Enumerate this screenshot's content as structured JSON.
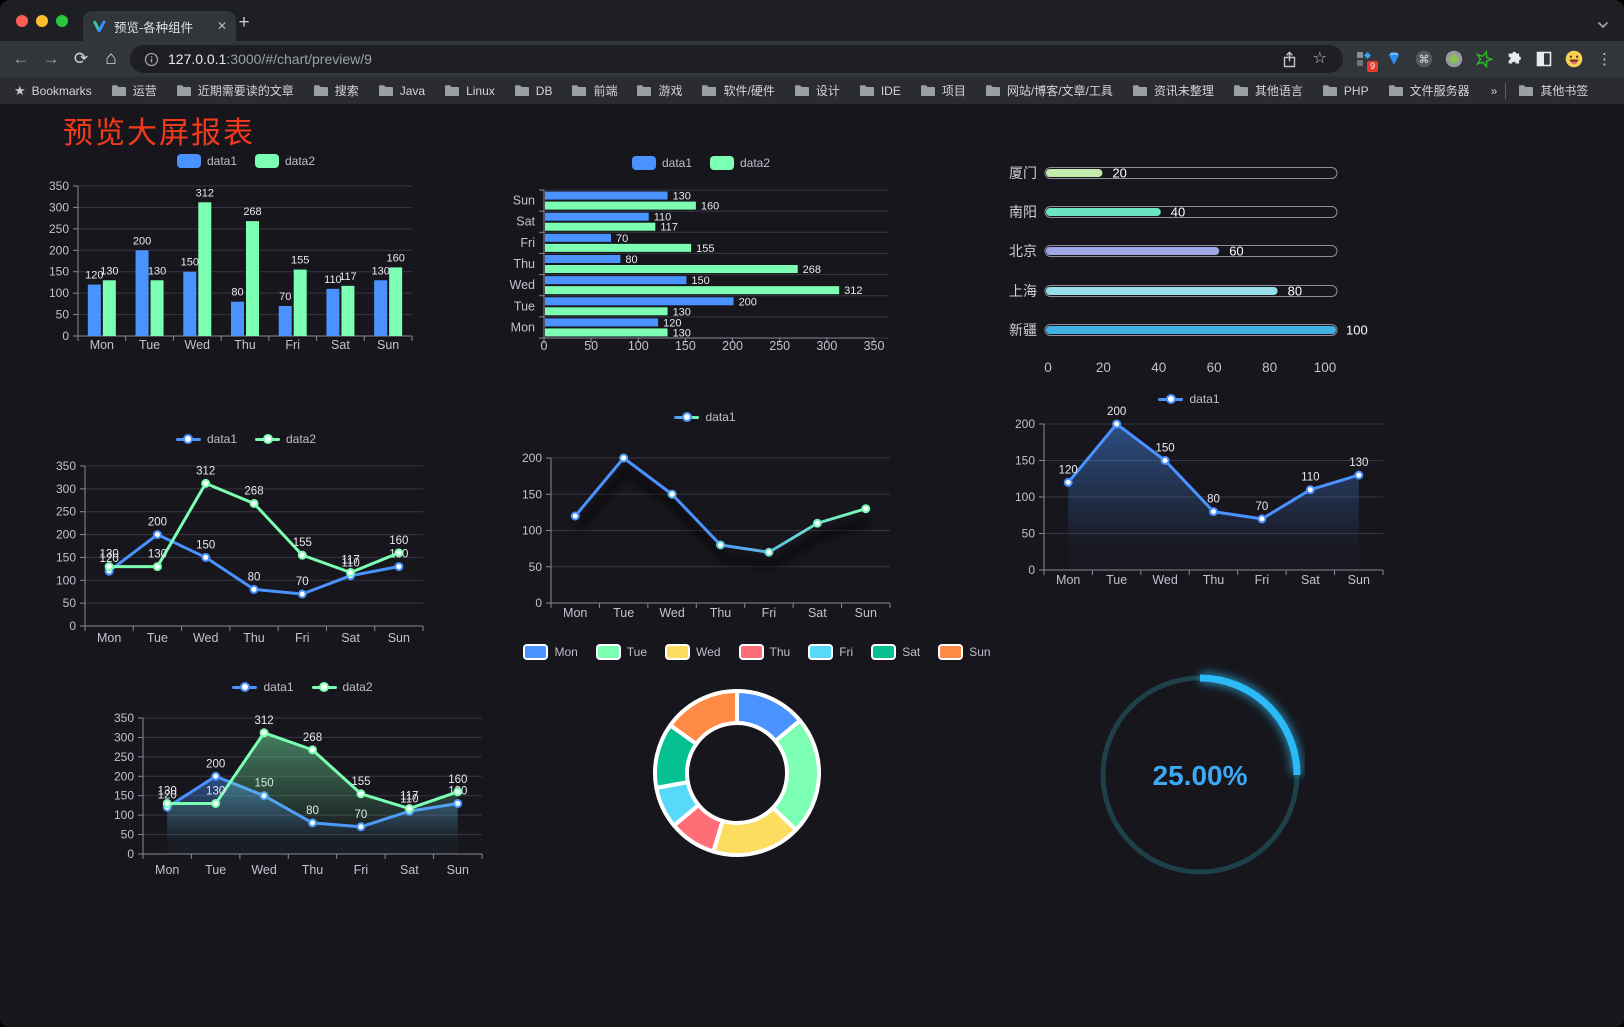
{
  "browser": {
    "traffic_lights": [
      "#ff5f57",
      "#febc2e",
      "#2ac840"
    ],
    "tab": {
      "title": "预览-各种组件"
    },
    "url": {
      "host": "127.0.0.1",
      "rest": ":3000/#/chart/preview/9"
    },
    "extensions_badge": "9",
    "bookmarks_bar": {
      "label": "Bookmarks",
      "folders": [
        "运营",
        "近期需要读的文章",
        "搜索",
        "Java",
        "Linux",
        "DB",
        "前端",
        "游戏",
        "软件/硬件",
        "设计",
        "IDE",
        "项目",
        "网站/博客/文章/工具",
        "资讯未整理",
        "其他语言",
        "PHP",
        "文件服务器"
      ],
      "overflow": "»",
      "other": "其他书签"
    }
  },
  "page": {
    "title": "预览大屏报表"
  },
  "chart_data": [
    {
      "id": "bar-vertical",
      "type": "bar",
      "legend_position": "top",
      "grid": true,
      "value_labels": true,
      "categories": [
        "Mon",
        "Tue",
        "Wed",
        "Thu",
        "Fri",
        "Sat",
        "Sun"
      ],
      "series": [
        {
          "name": "data1",
          "color": "#4992ff",
          "values": [
            120,
            200,
            150,
            80,
            70,
            110,
            130
          ]
        },
        {
          "name": "data2",
          "color": "#7cffb2",
          "values": [
            130,
            130,
            312,
            268,
            155,
            117,
            160
          ]
        }
      ],
      "ylim": [
        0,
        350
      ],
      "yticks": [
        0,
        50,
        100,
        150,
        200,
        250,
        300,
        350
      ]
    },
    {
      "id": "bar-horizontal",
      "type": "bar",
      "orientation": "horizontal",
      "legend_position": "top",
      "value_labels": true,
      "categories_top_to_bottom": [
        "Sun",
        "Sat",
        "Fri",
        "Thu",
        "Wed",
        "Tue",
        "Mon"
      ],
      "series": [
        {
          "name": "data1",
          "color": "#4992ff",
          "values": [
            130,
            110,
            70,
            80,
            150,
            200,
            120
          ]
        },
        {
          "name": "data2",
          "color": "#7cffb2",
          "values": [
            160,
            117,
            155,
            268,
            312,
            130,
            130
          ]
        }
      ],
      "xlim": [
        0,
        350
      ],
      "xticks": [
        0,
        50,
        100,
        150,
        200,
        250,
        300,
        350
      ]
    },
    {
      "id": "progress-bars",
      "type": "bar",
      "orientation": "horizontal",
      "style": "capsule",
      "items": [
        {
          "label": "厦门",
          "value": 20,
          "color": "#c4ebad"
        },
        {
          "label": "南阳",
          "value": 40,
          "color": "#6be6c1"
        },
        {
          "label": "北京",
          "value": 60,
          "color": "#a0a7e6"
        },
        {
          "label": "上海",
          "value": 80,
          "color": "#96dee8"
        },
        {
          "label": "新疆",
          "value": 100,
          "color": "#3fb1e3"
        }
      ],
      "xlim": [
        0,
        100
      ],
      "xticks": [
        0,
        20,
        40,
        60,
        80,
        100
      ]
    },
    {
      "id": "line-two-series",
      "type": "line",
      "legend_position": "top",
      "value_labels": true,
      "categories": [
        "Mon",
        "Tue",
        "Wed",
        "Thu",
        "Fri",
        "Sat",
        "Sun"
      ],
      "series": [
        {
          "name": "data1",
          "color": "#4992ff",
          "values": [
            120,
            200,
            150,
            80,
            70,
            110,
            130
          ]
        },
        {
          "name": "data2",
          "color": "#7cffb2",
          "values": [
            130,
            130,
            312,
            268,
            155,
            117,
            160
          ]
        }
      ],
      "ylim": [
        0,
        350
      ],
      "yticks": [
        0,
        50,
        100,
        150,
        200,
        250,
        300,
        350
      ]
    },
    {
      "id": "line-gradient",
      "type": "line",
      "legend_position": "top",
      "value_labels": false,
      "shadow": true,
      "categories": [
        "Mon",
        "Tue",
        "Wed",
        "Thu",
        "Fri",
        "Sat",
        "Sun"
      ],
      "series": [
        {
          "name": "data1",
          "line_gradient": [
            "#4992ff",
            "#7cffb2"
          ],
          "values": [
            120,
            200,
            150,
            80,
            70,
            110,
            130
          ]
        }
      ],
      "ylim": [
        0,
        200
      ],
      "yticks": [
        0,
        50,
        100,
        150,
        200
      ]
    },
    {
      "id": "area-single",
      "type": "area",
      "legend_position": "top",
      "value_labels": true,
      "categories": [
        "Mon",
        "Tue",
        "Wed",
        "Thu",
        "Fri",
        "Sat",
        "Sun"
      ],
      "series": [
        {
          "name": "data1",
          "color": "#4992ff",
          "area": true,
          "values": [
            120,
            200,
            150,
            80,
            70,
            110,
            130
          ]
        }
      ],
      "ylim": [
        0,
        200
      ],
      "yticks": [
        0,
        50,
        100,
        150,
        200
      ]
    },
    {
      "id": "line-area-two",
      "type": "area",
      "legend_position": "top",
      "value_labels": true,
      "categories": [
        "Mon",
        "Tue",
        "Wed",
        "Thu",
        "Fri",
        "Sat",
        "Sun"
      ],
      "series": [
        {
          "name": "data1",
          "color": "#4992ff",
          "area": true,
          "values": [
            120,
            200,
            150,
            80,
            70,
            110,
            130
          ]
        },
        {
          "name": "data2",
          "color": "#7cffb2",
          "area": true,
          "values": [
            130,
            130,
            312,
            268,
            155,
            117,
            160
          ]
        }
      ],
      "ylim": [
        0,
        350
      ],
      "yticks": [
        0,
        50,
        100,
        150,
        200,
        250,
        300,
        350
      ]
    },
    {
      "id": "donut",
      "type": "pie",
      "legend_position": "top",
      "inner_radius_ratio": 0.6,
      "border_color": "#ffffff",
      "slices": [
        {
          "label": "Mon",
          "value": 120,
          "color": "#4992ff"
        },
        {
          "label": "Tue",
          "value": 200,
          "color": "#7cffb2"
        },
        {
          "label": "Wed",
          "value": 150,
          "color": "#fddd60"
        },
        {
          "label": "Thu",
          "value": 80,
          "color": "#ff6e76"
        },
        {
          "label": "Fri",
          "value": 70,
          "color": "#58d9f9"
        },
        {
          "label": "Sat",
          "value": 110,
          "color": "#05c091"
        },
        {
          "label": "Sun",
          "value": 130,
          "color": "#ff8a45"
        }
      ]
    },
    {
      "id": "gauge",
      "type": "gauge",
      "percent": 25,
      "value_text": "25.00%",
      "arc_color": "#2cbaf7",
      "track_color": "#1d4049",
      "text_color": "#3da8f5"
    }
  ]
}
